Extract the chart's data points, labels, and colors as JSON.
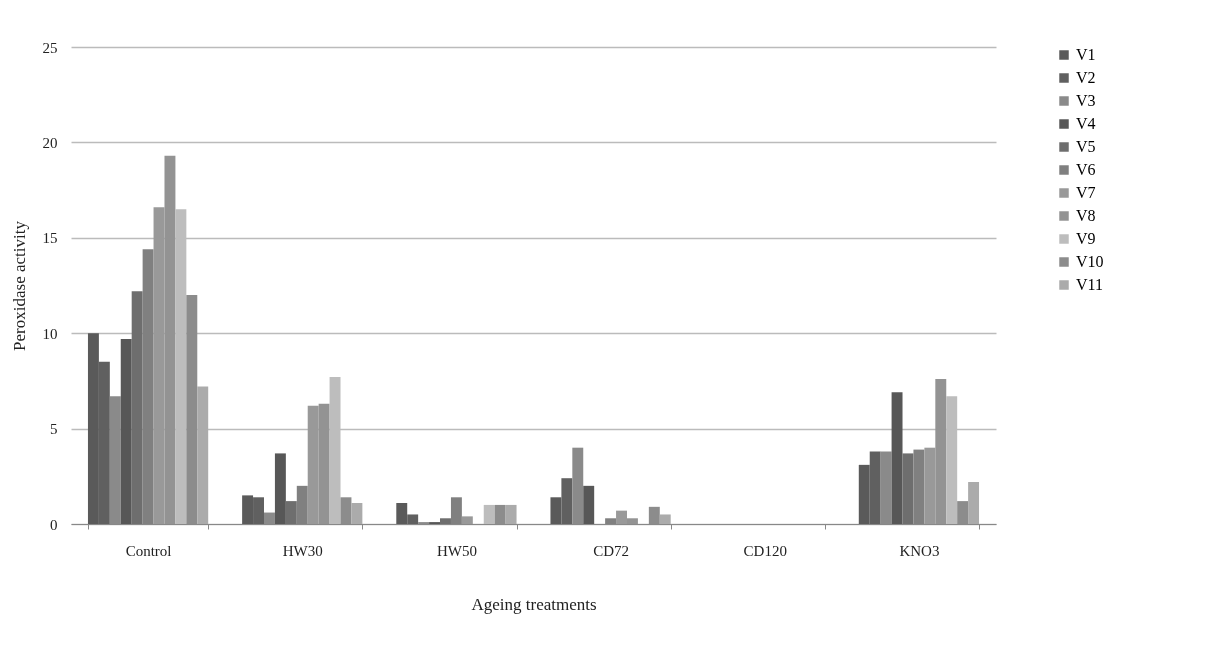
{
  "chart_data": {
    "type": "bar",
    "xlabel": "Ageing treatments",
    "ylabel": "Peroxidase activity",
    "categories": [
      "Control",
      "HW30",
      "HW50",
      "CD72",
      "CD120",
      "KNO3"
    ],
    "series": [
      {
        "name": "V1",
        "color": "#5a5a5a",
        "values": [
          10.0,
          1.5,
          1.1,
          1.4,
          0,
          3.1
        ]
      },
      {
        "name": "V2",
        "color": "#606060",
        "values": [
          8.5,
          1.4,
          0.5,
          2.4,
          0,
          3.8
        ]
      },
      {
        "name": "V3",
        "color": "#8a8a8a",
        "values": [
          6.7,
          0.6,
          0.1,
          4.0,
          0,
          3.8
        ]
      },
      {
        "name": "V4",
        "color": "#575757",
        "values": [
          9.7,
          3.7,
          0.1,
          2.0,
          0,
          6.9
        ]
      },
      {
        "name": "V5",
        "color": "#6e6e6e",
        "values": [
          12.2,
          1.2,
          0.3,
          0,
          0,
          3.7
        ]
      },
      {
        "name": "V6",
        "color": "#808080",
        "values": [
          14.4,
          2.0,
          1.4,
          0.3,
          0,
          3.9
        ]
      },
      {
        "name": "V7",
        "color": "#999999",
        "values": [
          16.6,
          6.2,
          0.4,
          0.7,
          0,
          4.0
        ]
      },
      {
        "name": "V8",
        "color": "#939393",
        "values": [
          19.3,
          6.3,
          0,
          0.3,
          0,
          7.6
        ]
      },
      {
        "name": "V9",
        "color": "#bdbdbd",
        "values": [
          16.5,
          7.7,
          1.0,
          0,
          0,
          6.7
        ]
      },
      {
        "name": "V10",
        "color": "#8c8c8c",
        "values": [
          12.0,
          1.4,
          1.0,
          0.9,
          0,
          1.2
        ]
      },
      {
        "name": "V11",
        "color": "#ababab",
        "values": [
          7.2,
          1.1,
          1.0,
          0.5,
          0,
          2.2
        ]
      }
    ],
    "ylim": [
      0,
      25
    ],
    "yticks": [
      0,
      5,
      10,
      15,
      20,
      25
    ],
    "grid": "y",
    "legend": "top right"
  }
}
